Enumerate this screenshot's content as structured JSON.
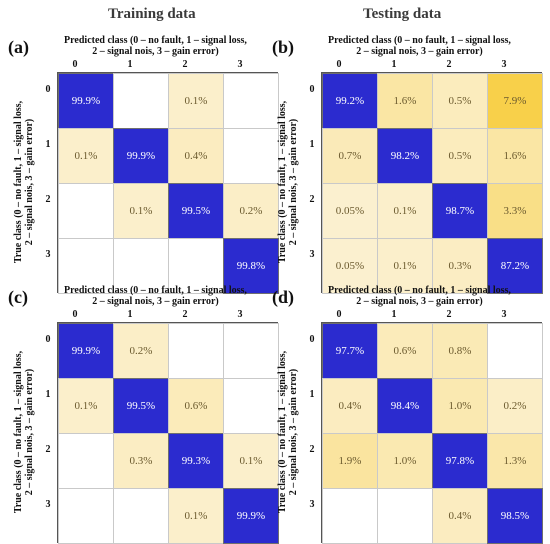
{
  "titles": {
    "training": "Training data",
    "testing": "Testing data"
  },
  "axis": {
    "pred_line1": "Predicted class (0 – no fault, 1 – signal loss,",
    "pred_line2": "2 – signal nois, 3 – gain error)",
    "true_line1": "True class (0 – no fault, 1 – signal loss,",
    "true_line2": "2 – signal nois, 3 – gain error)"
  },
  "ticks": [
    "0",
    "1",
    "2",
    "3"
  ],
  "colors": {
    "diagonal": "#2b2bcf",
    "diagonal_text": "#ffffff",
    "offdiag_text": "#6b5a2e",
    "empty": "#ffffff",
    "low": "#fbf0cf",
    "high": "#f8d04a"
  },
  "chart_data": [
    {
      "type": "heatmap",
      "label": "(a)",
      "group": "Training data",
      "classes": [
        "0",
        "1",
        "2",
        "3"
      ],
      "values": [
        [
          "99.9%",
          "",
          "0.1%",
          ""
        ],
        [
          "0.1%",
          "99.9%",
          "0.4%",
          ""
        ],
        [
          "",
          "0.1%",
          "99.5%",
          "0.2%"
        ],
        [
          "",
          "",
          "",
          "99.8%"
        ]
      ]
    },
    {
      "type": "heatmap",
      "label": "(b)",
      "group": "Testing data",
      "classes": [
        "0",
        "1",
        "2",
        "3"
      ],
      "values": [
        [
          "99.2%",
          "1.6%",
          "0.5%",
          "7.9%"
        ],
        [
          "0.7%",
          "98.2%",
          "0.5%",
          "1.6%"
        ],
        [
          "0.05%",
          "0.1%",
          "98.7%",
          "3.3%"
        ],
        [
          "0.05%",
          "0.1%",
          "0.3%",
          "87.2%"
        ]
      ]
    },
    {
      "type": "heatmap",
      "label": "(c)",
      "group": "Training data",
      "classes": [
        "0",
        "1",
        "2",
        "3"
      ],
      "values": [
        [
          "99.9%",
          "0.2%",
          "",
          ""
        ],
        [
          "0.1%",
          "99.5%",
          "0.6%",
          ""
        ],
        [
          "",
          "0.3%",
          "99.3%",
          "0.1%"
        ],
        [
          "",
          "",
          "0.1%",
          "99.9%"
        ]
      ]
    },
    {
      "type": "heatmap",
      "label": "(d)",
      "group": "Testing data",
      "classes": [
        "0",
        "1",
        "2",
        "3"
      ],
      "values": [
        [
          "97.7%",
          "0.6%",
          "0.8%",
          ""
        ],
        [
          "0.4%",
          "98.4%",
          "1.0%",
          "0.2%"
        ],
        [
          "1.9%",
          "1.0%",
          "97.8%",
          "1.3%"
        ],
        [
          "",
          "",
          "0.4%",
          "98.5%"
        ]
      ]
    }
  ]
}
